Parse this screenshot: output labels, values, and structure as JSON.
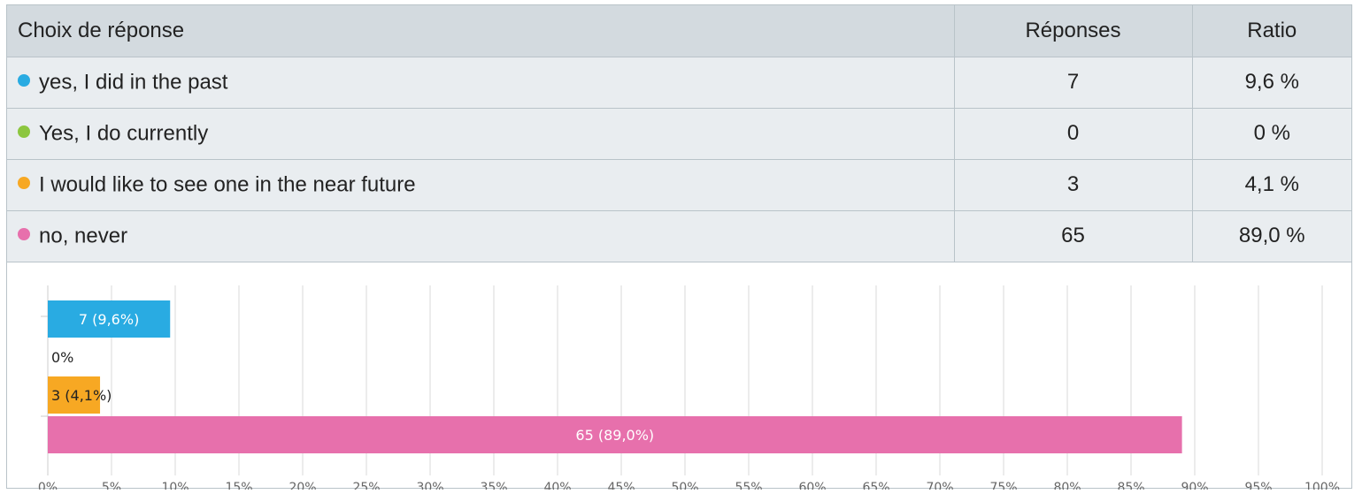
{
  "table": {
    "headers": {
      "choice": "Choix de réponse",
      "responses": "Réponses",
      "ratio": "Ratio"
    },
    "rows": [
      {
        "label": "yes, I did in the past",
        "responses": "7",
        "ratio": "9,6 %",
        "color": "#29abe2"
      },
      {
        "label": "Yes, I do currently",
        "responses": "0",
        "ratio": "0 %",
        "color": "#8cc63f"
      },
      {
        "label": "I would like to see one in the near future",
        "responses": "3",
        "ratio": "4,1 %",
        "color": "#f7a823"
      },
      {
        "label": "no, never",
        "responses": "65",
        "ratio": "89,0 %",
        "color": "#e770ac"
      }
    ]
  },
  "chart_data": {
    "type": "bar",
    "orientation": "horizontal",
    "categories": [
      "yes, I did in the past",
      "Yes, I do currently",
      "I would like to see one in the near future",
      "no, never"
    ],
    "values": [
      9.6,
      0,
      4.1,
      89.0
    ],
    "counts": [
      7,
      0,
      3,
      65
    ],
    "data_labels": [
      "7 (9,6%)",
      "0%",
      "3 (4,1%)",
      "65 (89,0%)"
    ],
    "colors": [
      "#29abe2",
      "#8cc63f",
      "#f7a823",
      "#e770ac"
    ],
    "xlim": [
      0,
      100
    ],
    "x_ticks": [
      "0%",
      "5%",
      "10%",
      "15%",
      "20%",
      "25%",
      "30%",
      "35%",
      "40%",
      "45%",
      "50%",
      "55%",
      "60%",
      "65%",
      "70%",
      "75%",
      "80%",
      "85%",
      "90%",
      "95%",
      "100%"
    ],
    "grid": true
  }
}
